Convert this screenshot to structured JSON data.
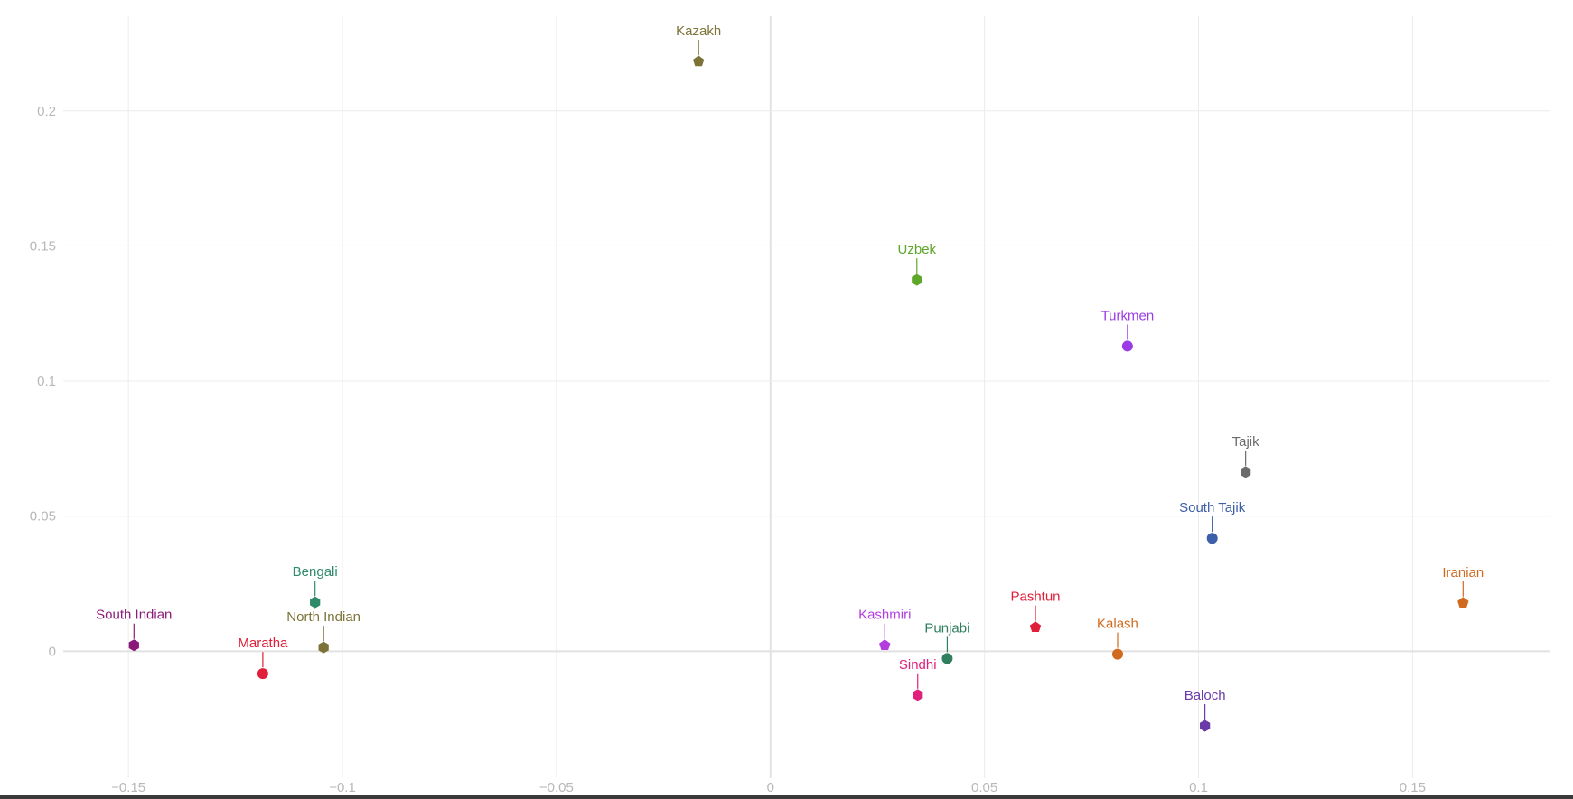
{
  "chart_data": {
    "type": "scatter",
    "title": "",
    "xlabel": "",
    "ylabel": "",
    "xlim": [
      -0.18,
      0.182
    ],
    "ylim": [
      -0.047,
      0.235
    ],
    "grid": true,
    "legend": "none",
    "x_ticks": [
      {
        "value": -0.15,
        "label": "−0.15"
      },
      {
        "value": -0.1,
        "label": "−0.1"
      },
      {
        "value": -0.05,
        "label": "−0.05"
      },
      {
        "value": 0,
        "label": "0"
      },
      {
        "value": 0.05,
        "label": "0.05"
      },
      {
        "value": 0.1,
        "label": "0.1"
      },
      {
        "value": 0.15,
        "label": "0.15"
      }
    ],
    "y_ticks": [
      {
        "value": 0,
        "label": "0"
      },
      {
        "value": 0.05,
        "label": "0.05"
      },
      {
        "value": 0.1,
        "label": "0.1"
      },
      {
        "value": 0.15,
        "label": "0.15"
      },
      {
        "value": 0.2,
        "label": "0.2"
      }
    ],
    "points": [
      {
        "name": "Kazakh",
        "x": -0.0168,
        "y": 0.2183,
        "marker": "pentagon",
        "color": "#7d7338",
        "label_color": "#7d7338"
      },
      {
        "name": "Uzbek",
        "x": 0.0342,
        "y": 0.1374,
        "marker": "hexagon",
        "color": "#5fa72a",
        "label_color": "#5fa72a"
      },
      {
        "name": "Turkmen",
        "x": 0.0834,
        "y": 0.1129,
        "marker": "circle",
        "color": "#9b3be6",
        "label_color": "#9b3be6"
      },
      {
        "name": "Tajik",
        "x": 0.111,
        "y": 0.0663,
        "marker": "hexagon",
        "color": "#6b6b6b",
        "label_color": "#6b6b6b"
      },
      {
        "name": "South Tajik",
        "x": 0.1032,
        "y": 0.0418,
        "marker": "circle",
        "color": "#3d5ea8",
        "label_color": "#3d5ea8"
      },
      {
        "name": "Iranian",
        "x": 0.1618,
        "y": 0.0179,
        "marker": "pentagon",
        "color": "#d06a1e",
        "label_color": "#d06a1e"
      },
      {
        "name": "Bengali",
        "x": -0.1064,
        "y": 0.0181,
        "marker": "hexagon",
        "color": "#2f8a6a",
        "label_color": "#2f8a6a"
      },
      {
        "name": "South Indian",
        "x": -0.1487,
        "y": 0.0022,
        "marker": "hexagon",
        "color": "#8a1a7a",
        "label_color": "#8a1a7a"
      },
      {
        "name": "North Indian",
        "x": -0.1044,
        "y": 0.0014,
        "marker": "hexagon",
        "color": "#7d7338",
        "label_color": "#7d7338"
      },
      {
        "name": "Maratha",
        "x": -0.1186,
        "y": -0.0083,
        "marker": "circle",
        "color": "#e0203a",
        "label_color": "#e0203a"
      },
      {
        "name": "Kashmiri",
        "x": 0.0267,
        "y": 0.0022,
        "marker": "pentagon",
        "color": "#b23ee0",
        "label_color": "#b23ee0"
      },
      {
        "name": "Punjabi",
        "x": 0.0413,
        "y": -0.0027,
        "marker": "circle",
        "color": "#2f7f5f",
        "label_color": "#2f7f5f"
      },
      {
        "name": "Sindhi",
        "x": 0.0344,
        "y": -0.0162,
        "marker": "hexagon",
        "color": "#e0207a",
        "label_color": "#e0207a"
      },
      {
        "name": "Pashtun",
        "x": 0.0619,
        "y": 0.0089,
        "marker": "pentagon",
        "color": "#e0203a",
        "label_color": "#e0203a"
      },
      {
        "name": "Kalash",
        "x": 0.0811,
        "y": -0.0011,
        "marker": "circle",
        "color": "#d06a1e",
        "label_color": "#d06a1e"
      },
      {
        "name": "Baloch",
        "x": 0.1015,
        "y": -0.0276,
        "marker": "hexagon",
        "color": "#6a3aa8",
        "label_color": "#6a3aa8"
      }
    ]
  }
}
